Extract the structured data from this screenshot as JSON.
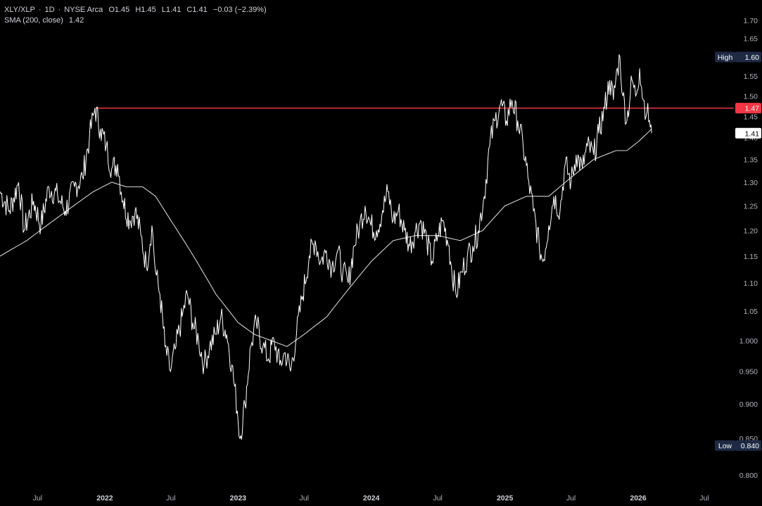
{
  "legend": {
    "symbol": "XLY/XLP",
    "interval": "1D",
    "exchange": "NYSE Arca",
    "open": "O1.45",
    "high": "H1.45",
    "low": "L1.41",
    "close": "C1.41",
    "change": "−0.03 (−2.39%)",
    "sma_label": "SMA (200, close)",
    "sma_value": "1.42"
  },
  "colors": {
    "background": "#000000",
    "price_line": "#ffffff",
    "sma_line": "#d1d4dc",
    "resistance_line": "#f23645",
    "axis_text": "#b2b5be",
    "badge_navy": "#1e2a44",
    "badge_red": "#f23645"
  },
  "chart_data": {
    "type": "line",
    "y_scale": "log",
    "ylim": [
      0.8,
      1.72
    ],
    "y_ticks": [
      "1.70",
      "1.65",
      "1.60",
      "1.55",
      "1.50",
      "1.45",
      "1.40",
      "1.35",
      "1.30",
      "1.25",
      "1.20",
      "1.15",
      "1.10",
      "1.05",
      "1.000",
      "0.950",
      "0.900",
      "0.850",
      "0.800"
    ],
    "x_ticks": [
      {
        "label": "Jul",
        "date": "2021-07-01",
        "year": false
      },
      {
        "label": "2022",
        "date": "2022-01-01",
        "year": true
      },
      {
        "label": "Jul",
        "date": "2022-07-01",
        "year": false
      },
      {
        "label": "2023",
        "date": "2023-01-01",
        "year": true
      },
      {
        "label": "Jul",
        "date": "2023-07-01",
        "year": false
      },
      {
        "label": "2024",
        "date": "2024-01-01",
        "year": true
      },
      {
        "label": "Jul",
        "date": "2024-07-01",
        "year": false
      },
      {
        "label": "2025",
        "date": "2025-01-01",
        "year": true
      },
      {
        "label": "Jul",
        "date": "2025-07-01",
        "year": false
      },
      {
        "label": "2026",
        "date": "2026-01-01",
        "year": true
      },
      {
        "label": "Jul",
        "date": "2026-07-01",
        "year": false
      }
    ],
    "xlim": [
      "2021-03-20",
      "2026-09-20"
    ],
    "series": [
      {
        "name": "XLY/XLP",
        "points": [
          [
            "2021-03-20",
            1.28
          ],
          [
            "2021-04-15",
            1.24
          ],
          [
            "2021-05-10",
            1.3
          ],
          [
            "2021-05-25",
            1.2
          ],
          [
            "2021-06-20",
            1.26
          ],
          [
            "2021-07-10",
            1.21
          ],
          [
            "2021-08-01",
            1.29
          ],
          [
            "2021-08-25",
            1.27
          ],
          [
            "2021-09-15",
            1.24
          ],
          [
            "2021-10-10",
            1.29
          ],
          [
            "2021-11-01",
            1.31
          ],
          [
            "2021-11-20",
            1.4
          ],
          [
            "2021-12-05",
            1.47
          ],
          [
            "2021-12-20",
            1.42
          ],
          [
            "2022-01-05",
            1.38
          ],
          [
            "2022-01-20",
            1.33
          ],
          [
            "2022-02-05",
            1.34
          ],
          [
            "2022-02-20",
            1.26
          ],
          [
            "2022-03-10",
            1.22
          ],
          [
            "2022-03-25",
            1.24
          ],
          [
            "2022-04-10",
            1.19
          ],
          [
            "2022-04-25",
            1.13
          ],
          [
            "2022-05-10",
            1.21
          ],
          [
            "2022-05-20",
            1.12
          ],
          [
            "2022-06-01",
            1.08
          ],
          [
            "2022-06-15",
            0.99
          ],
          [
            "2022-06-30",
            0.95
          ],
          [
            "2022-07-15",
            0.99
          ],
          [
            "2022-08-01",
            1.04
          ],
          [
            "2022-08-15",
            1.08
          ],
          [
            "2022-08-30",
            1.03
          ],
          [
            "2022-09-15",
            1.0
          ],
          [
            "2022-09-30",
            0.96
          ],
          [
            "2022-10-15",
            0.99
          ],
          [
            "2022-11-01",
            1.01
          ],
          [
            "2022-11-15",
            1.04
          ],
          [
            "2022-12-01",
            1.01
          ],
          [
            "2022-12-15",
            0.96
          ],
          [
            "2022-12-30",
            0.89
          ],
          [
            "2023-01-06",
            0.85
          ],
          [
            "2023-01-20",
            0.9
          ],
          [
            "2023-02-05",
            0.99
          ],
          [
            "2023-02-20",
            1.03
          ],
          [
            "2023-03-10",
            0.99
          ],
          [
            "2023-03-25",
            0.97
          ],
          [
            "2023-04-10",
            1.0
          ],
          [
            "2023-04-25",
            0.96
          ],
          [
            "2023-05-10",
            0.98
          ],
          [
            "2023-05-25",
            0.95
          ],
          [
            "2023-06-10",
            1.01
          ],
          [
            "2023-06-25",
            1.07
          ],
          [
            "2023-07-15",
            1.15
          ],
          [
            "2023-07-31",
            1.18
          ],
          [
            "2023-08-15",
            1.14
          ],
          [
            "2023-08-31",
            1.16
          ],
          [
            "2023-09-15",
            1.13
          ],
          [
            "2023-09-30",
            1.16
          ],
          [
            "2023-10-15",
            1.12
          ],
          [
            "2023-10-30",
            1.1
          ],
          [
            "2023-11-15",
            1.17
          ],
          [
            "2023-11-30",
            1.21
          ],
          [
            "2023-12-15",
            1.25
          ],
          [
            "2023-12-31",
            1.21
          ],
          [
            "2024-01-15",
            1.2
          ],
          [
            "2024-02-01",
            1.24
          ],
          [
            "2024-02-15",
            1.28
          ],
          [
            "2024-03-01",
            1.22
          ],
          [
            "2024-03-15",
            1.24
          ],
          [
            "2024-04-01",
            1.2
          ],
          [
            "2024-04-15",
            1.17
          ],
          [
            "2024-05-01",
            1.2
          ],
          [
            "2024-05-15",
            1.22
          ],
          [
            "2024-06-01",
            1.18
          ],
          [
            "2024-06-15",
            1.14
          ],
          [
            "2024-07-01",
            1.19
          ],
          [
            "2024-07-15",
            1.22
          ],
          [
            "2024-08-01",
            1.17
          ],
          [
            "2024-08-05",
            1.14
          ],
          [
            "2024-08-20",
            1.08
          ],
          [
            "2024-09-05",
            1.12
          ],
          [
            "2024-09-20",
            1.15
          ],
          [
            "2024-10-05",
            1.17
          ],
          [
            "2024-10-20",
            1.2
          ],
          [
            "2024-11-05",
            1.27
          ],
          [
            "2024-11-20",
            1.38
          ],
          [
            "2024-12-05",
            1.44
          ],
          [
            "2024-12-20",
            1.48
          ],
          [
            "2025-01-05",
            1.44
          ],
          [
            "2025-01-20",
            1.49
          ],
          [
            "2025-02-05",
            1.44
          ],
          [
            "2025-02-20",
            1.38
          ],
          [
            "2025-03-05",
            1.31
          ],
          [
            "2025-03-20",
            1.24
          ],
          [
            "2025-04-05",
            1.17
          ],
          [
            "2025-04-15",
            1.14
          ],
          [
            "2025-05-01",
            1.21
          ],
          [
            "2025-05-15",
            1.27
          ],
          [
            "2025-06-01",
            1.24
          ],
          [
            "2025-06-15",
            1.34
          ],
          [
            "2025-07-01",
            1.3
          ],
          [
            "2025-07-15",
            1.36
          ],
          [
            "2025-08-01",
            1.33
          ],
          [
            "2025-08-15",
            1.38
          ],
          [
            "2025-09-01",
            1.36
          ],
          [
            "2025-09-15",
            1.41
          ],
          [
            "2025-10-01",
            1.47
          ],
          [
            "2025-10-15",
            1.54
          ],
          [
            "2025-10-25",
            1.49
          ],
          [
            "2025-11-05",
            1.57
          ],
          [
            "2025-11-12",
            1.6
          ],
          [
            "2025-11-20",
            1.5
          ],
          [
            "2025-12-01",
            1.44
          ],
          [
            "2025-12-15",
            1.54
          ],
          [
            "2025-12-25",
            1.5
          ],
          [
            "2026-01-05",
            1.57
          ],
          [
            "2026-01-15",
            1.49
          ],
          [
            "2026-01-25",
            1.46
          ],
          [
            "2026-02-01",
            1.44
          ],
          [
            "2026-02-07",
            1.41
          ]
        ]
      },
      {
        "name": "SMA (200, close)",
        "points": [
          [
            "2021-03-20",
            1.15
          ],
          [
            "2021-06-01",
            1.18
          ],
          [
            "2021-09-01",
            1.23
          ],
          [
            "2021-12-01",
            1.28
          ],
          [
            "2022-01-20",
            1.3
          ],
          [
            "2022-03-01",
            1.29
          ],
          [
            "2022-04-15",
            1.29
          ],
          [
            "2022-05-20",
            1.27
          ],
          [
            "2022-07-01",
            1.22
          ],
          [
            "2022-09-01",
            1.15
          ],
          [
            "2022-11-01",
            1.08
          ],
          [
            "2023-01-01",
            1.03
          ],
          [
            "2023-02-15",
            1.01
          ],
          [
            "2023-04-01",
            1.0
          ],
          [
            "2023-05-15",
            0.99
          ],
          [
            "2023-07-01",
            1.01
          ],
          [
            "2023-09-01",
            1.04
          ],
          [
            "2023-11-01",
            1.09
          ],
          [
            "2024-01-01",
            1.14
          ],
          [
            "2024-03-01",
            1.18
          ],
          [
            "2024-05-01",
            1.19
          ],
          [
            "2024-07-01",
            1.19
          ],
          [
            "2024-09-01",
            1.18
          ],
          [
            "2024-11-01",
            1.2
          ],
          [
            "2025-01-01",
            1.25
          ],
          [
            "2025-03-01",
            1.27
          ],
          [
            "2025-05-01",
            1.27
          ],
          [
            "2025-07-01",
            1.31
          ],
          [
            "2025-09-01",
            1.35
          ],
          [
            "2025-11-01",
            1.37
          ],
          [
            "2025-12-01",
            1.37
          ],
          [
            "2026-01-01",
            1.39
          ],
          [
            "2026-02-07",
            1.42
          ]
        ]
      }
    ],
    "resistance": {
      "value": 1.47,
      "from": "2021-12-05"
    },
    "price_badges": [
      {
        "label": "High",
        "value": "1.60",
        "y": 1.6,
        "style": "navy"
      },
      {
        "label": "",
        "value": "1.47",
        "y": 1.47,
        "style": "red"
      },
      {
        "label": "",
        "value": "1.41",
        "y": 1.41,
        "style": "white"
      },
      {
        "label": "Low",
        "value": "0.840",
        "y": 0.84,
        "style": "navy"
      }
    ],
    "grid": false
  }
}
